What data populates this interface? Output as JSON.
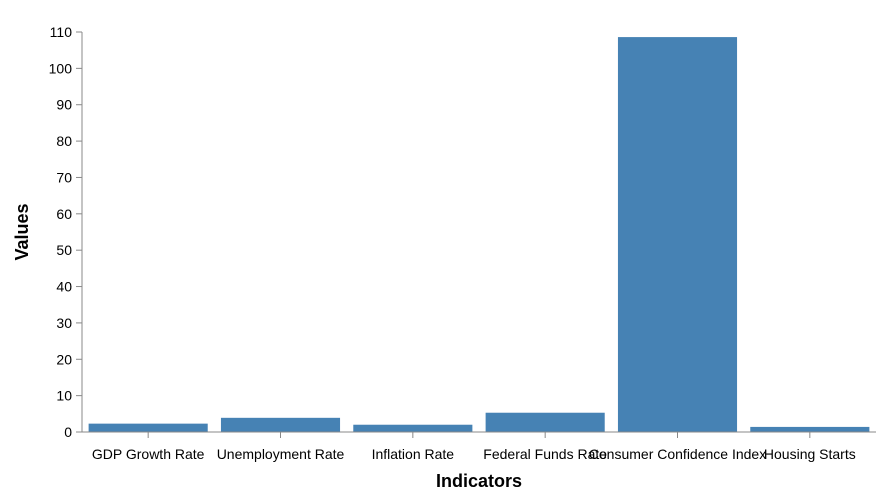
{
  "chart_data": {
    "type": "bar",
    "title": "",
    "xlabel": "Indicators",
    "ylabel": "Values",
    "categories": [
      "GDP Growth Rate",
      "Unemployment Rate",
      "Inflation Rate",
      "Federal Funds Rate",
      "Consumer Confidence Index",
      "Housing Starts"
    ],
    "values": [
      2.3,
      3.9,
      2.0,
      5.3,
      108.6,
      1.4
    ],
    "ylim": [
      0,
      110
    ],
    "yticks": [
      0,
      10,
      20,
      30,
      40,
      50,
      60,
      70,
      80,
      90,
      100,
      110
    ],
    "grid": false,
    "legend": "none",
    "bar_color": "#4682b4"
  }
}
